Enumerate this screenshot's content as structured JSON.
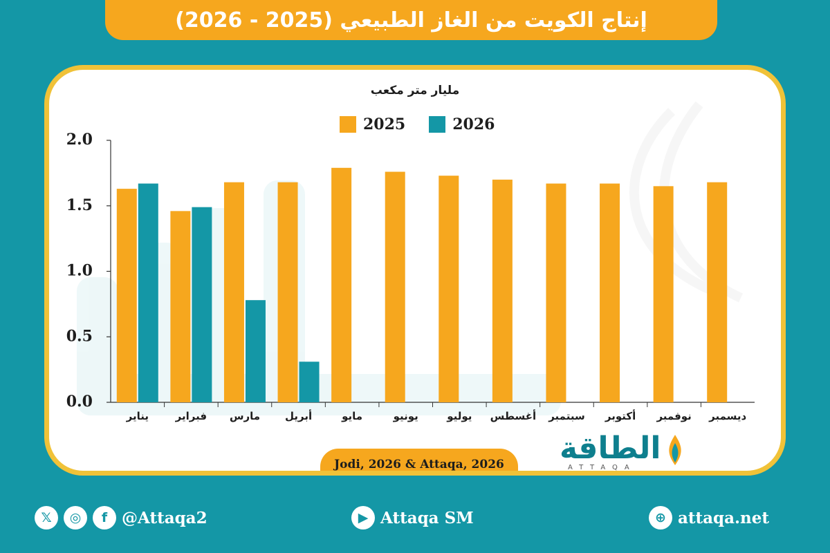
{
  "title": "إنتاج الكويت من الغاز الطبيعي (2025 - 2026)",
  "unit_label": "مليار متر مكعب",
  "source": "Jodi, 2026 & Attaqa, 2026",
  "logo": {
    "arabic": "الطاقة",
    "english": "ATTAQA"
  },
  "footer": {
    "social_handle": "@Attaqa2",
    "youtube": "Attaqa SM",
    "website": "attaqa.net",
    "icons": [
      "x-icon",
      "instagram-icon",
      "facebook-icon",
      "youtube-icon",
      "globe-icon"
    ]
  },
  "colors": {
    "series_2025": "#f6a71e",
    "series_2026": "#1497a6",
    "background": "#1497a6",
    "panel_border": "#f0c238"
  },
  "chart_data": {
    "type": "bar",
    "categories": [
      "يناير",
      "فبراير",
      "مارس",
      "أبريل",
      "مايو",
      "يونيو",
      "يوليو",
      "أغسطس",
      "سبتمبر",
      "أكتوبر",
      "نوفمبر",
      "ديسمبر"
    ],
    "series": [
      {
        "name": "2025",
        "values": [
          1.63,
          1.46,
          1.68,
          1.68,
          1.79,
          1.76,
          1.73,
          1.7,
          1.67,
          1.67,
          1.65,
          1.68
        ]
      },
      {
        "name": "2026",
        "values": [
          1.67,
          1.49,
          0.78,
          0.31,
          null,
          null,
          null,
          null,
          null,
          null,
          null,
          null
        ]
      }
    ],
    "ylim": [
      0,
      2.0
    ],
    "yticks": [
      "0.0",
      "0.5",
      "1.0",
      "1.5",
      "2.0"
    ],
    "ylabel": "مليار متر مكعب",
    "legend_position": "top-center",
    "grid": false
  }
}
